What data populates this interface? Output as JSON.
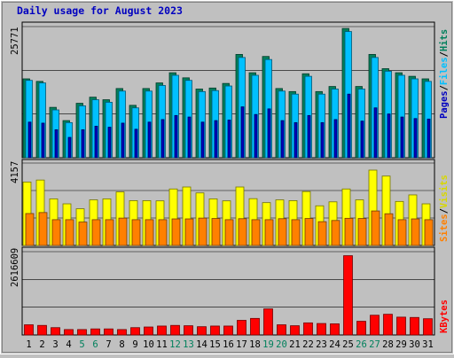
{
  "chart_data": [
    {
      "type": "bar",
      "title": "Daily usage for August 2023",
      "categories": [
        "1",
        "2",
        "3",
        "4",
        "5",
        "6",
        "7",
        "8",
        "9",
        "10",
        "11",
        "12",
        "13",
        "14",
        "15",
        "16",
        "17",
        "18",
        "19",
        "20",
        "21",
        "22",
        "23",
        "24",
        "25",
        "26",
        "27",
        "28",
        "29",
        "30",
        "31"
      ],
      "weekend_days": [
        "5",
        "6",
        "12",
        "13",
        "19",
        "20",
        "26",
        "27"
      ],
      "ymax_label": "25771",
      "side_label": [
        "Pages",
        "Files",
        "Hits"
      ],
      "series": [
        {
          "name": "Hits",
          "color": "#00805c",
          "values": [
            15500,
            15000,
            9900,
            7300,
            10700,
            11900,
            11400,
            13600,
            10300,
            13600,
            14700,
            16700,
            15700,
            13500,
            13700,
            14600,
            20300,
            16700,
            19900,
            13600,
            13000,
            16500,
            13000,
            14000,
            25400,
            14000,
            20300,
            17500,
            16700,
            16000,
            15500
          ]
        },
        {
          "name": "Files",
          "color": "#00c0ff",
          "values": [
            15200,
            14700,
            9400,
            6900,
            10200,
            11400,
            10900,
            13100,
            9800,
            13100,
            14200,
            16200,
            15200,
            13000,
            13200,
            14100,
            19700,
            16200,
            19300,
            13100,
            12500,
            16000,
            12500,
            13500,
            24800,
            13500,
            19700,
            17000,
            16200,
            15500,
            15000
          ]
        },
        {
          "name": "Pages",
          "color": "#0000c0",
          "values": [
            7000,
            6800,
            5500,
            4000,
            5500,
            6200,
            6000,
            6800,
            5600,
            7000,
            7500,
            8300,
            8000,
            7000,
            7300,
            7400,
            10000,
            8500,
            9600,
            7300,
            6900,
            8300,
            6900,
            7500,
            12500,
            7200,
            9800,
            8600,
            8000,
            7700,
            7600
          ]
        }
      ]
    },
    {
      "type": "bar",
      "ymax_label": "4157",
      "side_label": [
        "Sites",
        "Visits"
      ],
      "series": [
        {
          "name": "Visits",
          "color": "#ffff00",
          "values": [
            3200,
            3300,
            2350,
            2100,
            1850,
            2300,
            2350,
            2700,
            2260,
            2260,
            2250,
            2850,
            2950,
            2650,
            2350,
            2250,
            2950,
            2360,
            2160,
            2300,
            2260,
            2720,
            2000,
            2200,
            2850,
            2300,
            3800,
            3500,
            2220,
            2550,
            2100
          ]
        },
        {
          "name": "Sites",
          "color": "#ff8000",
          "values": [
            1610,
            1660,
            1300,
            1300,
            1180,
            1300,
            1300,
            1380,
            1300,
            1300,
            1300,
            1340,
            1340,
            1380,
            1360,
            1300,
            1350,
            1300,
            1300,
            1350,
            1300,
            1360,
            1200,
            1260,
            1370,
            1360,
            1740,
            1600,
            1300,
            1340,
            1300
          ]
        }
      ]
    },
    {
      "type": "bar",
      "ymax_label": "2616609",
      "side_label": [
        "KBytes"
      ],
      "series": [
        {
          "name": "KBytes",
          "color": "#ff0000",
          "values": [
            320000,
            300000,
            230000,
            170000,
            170000,
            190000,
            190000,
            170000,
            230000,
            250000,
            280000,
            300000,
            290000,
            260000,
            280000,
            280000,
            460000,
            520000,
            820000,
            320000,
            290000,
            380000,
            360000,
            350000,
            2490000,
            430000,
            620000,
            650000,
            560000,
            550000,
            510000
          ]
        }
      ]
    }
  ]
}
